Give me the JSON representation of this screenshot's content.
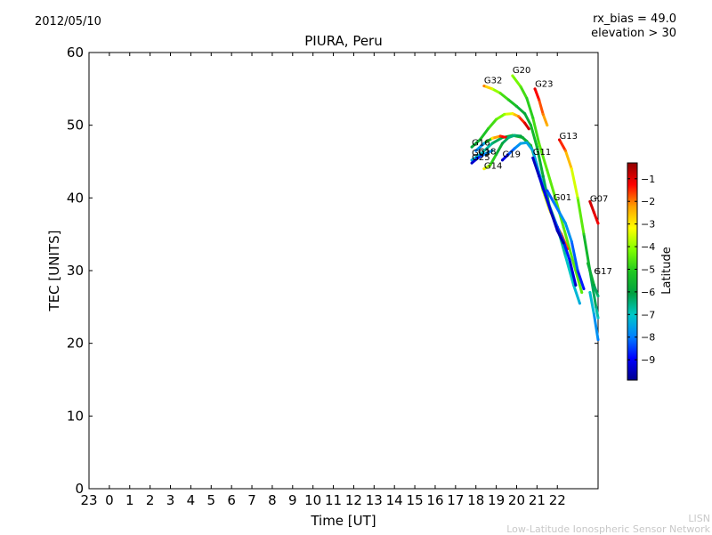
{
  "header": {
    "date": "2012/05/10",
    "bias_line": "rx_bias = 49.0",
    "elevation_line": "elevation > 30"
  },
  "watermark": {
    "line1": "LISN",
    "line2": "Low-Latitude Ionospheric Sensor Network"
  },
  "chart_data": {
    "type": "line",
    "title": "PIURA, Peru",
    "xlabel": "Time [UT]",
    "ylabel": "TEC [UNITS]",
    "xlim": [
      -1,
      24
    ],
    "ylim": [
      0,
      60
    ],
    "x_ticks": [
      -1,
      0,
      1,
      2,
      3,
      4,
      5,
      6,
      7,
      8,
      9,
      10,
      11,
      12,
      13,
      14,
      15,
      16,
      17,
      18,
      19,
      20,
      21,
      22
    ],
    "x_tick_labels": [
      "23",
      "0",
      "1",
      "2",
      "3",
      "4",
      "5",
      "6",
      "7",
      "8",
      "9",
      "10",
      "11",
      "12",
      "13",
      "14",
      "15",
      "16",
      "17",
      "18",
      "19",
      "20",
      "21",
      "22"
    ],
    "y_ticks": [
      0,
      10,
      20,
      30,
      40,
      50,
      60
    ],
    "colorbar": {
      "label": "Latitude",
      "range": [
        -9.9,
        -0.3
      ],
      "ticks": [
        -1,
        -2,
        -3,
        -4,
        -5,
        -6,
        -7,
        -8,
        -9
      ],
      "tick_labels": [
        "−1",
        "−2",
        "−3",
        "−4",
        "−5",
        "−6",
        "−7",
        "−8",
        "−9"
      ],
      "colormap": [
        "#00008f",
        "#0000ff",
        "#0080ff",
        "#00c8c8",
        "#00a040",
        "#20c820",
        "#80ff00",
        "#ffff00",
        "#ffa000",
        "#ff0000",
        "#8f0000"
      ]
    },
    "series": [
      {
        "name": "G32",
        "label_at": [
          18.4,
          55.8
        ],
        "points": [
          [
            18.4,
            55.4,
            -2.0
          ],
          [
            18.8,
            55.0,
            -3.5
          ],
          [
            19.2,
            54.4,
            -4.5
          ],
          [
            19.6,
            53.5,
            -5.0
          ],
          [
            20.0,
            52.6,
            -5.5
          ],
          [
            20.4,
            51.6,
            -6.0
          ],
          [
            20.7,
            50.0,
            -5.5
          ],
          [
            21.0,
            47.0,
            -5.5
          ],
          [
            21.3,
            43.0,
            -6.0
          ],
          [
            21.6,
            39.0,
            -6.5
          ],
          [
            22.0,
            36.0,
            -6.5
          ],
          [
            22.4,
            32.0,
            -7.0
          ],
          [
            22.8,
            28.0,
            -7.0
          ],
          [
            23.1,
            25.5,
            -7.5
          ]
        ]
      },
      {
        "name": "G20",
        "label_at": [
          19.8,
          57.2
        ],
        "points": [
          [
            19.8,
            56.8,
            -4.0
          ],
          [
            20.2,
            55.3,
            -4.5
          ],
          [
            20.5,
            53.7,
            -5.0
          ],
          [
            20.8,
            51.0,
            -5.0
          ],
          [
            21.1,
            47.5,
            -4.5
          ],
          [
            21.5,
            43.8,
            -4.5
          ],
          [
            21.9,
            40.0,
            -4.5
          ],
          [
            22.3,
            36.0,
            -4.5
          ],
          [
            22.6,
            33.0,
            -4.5
          ],
          [
            22.9,
            30.0,
            -4.5
          ],
          [
            23.2,
            27.0,
            -4.5
          ]
        ]
      },
      {
        "name": "G23",
        "label_at": [
          20.9,
          55.3
        ],
        "points": [
          [
            20.9,
            55.0,
            -1.0
          ],
          [
            21.1,
            53.5,
            -1.5
          ],
          [
            21.3,
            51.5,
            -2.0
          ],
          [
            21.5,
            50.0,
            -2.5
          ]
        ]
      },
      {
        "name": "G13",
        "label_at": [
          22.1,
          48.1
        ],
        "points": [
          [
            22.1,
            48.0,
            -1.0
          ],
          [
            22.4,
            46.5,
            -2.0
          ],
          [
            22.7,
            44.0,
            -3.0
          ],
          [
            23.0,
            40.0,
            -4.0
          ],
          [
            23.3,
            35.0,
            -5.0
          ],
          [
            23.6,
            30.0,
            -6.0
          ],
          [
            23.9,
            25.0,
            -6.5
          ],
          [
            24.0,
            23.5,
            -7.0
          ]
        ]
      },
      {
        "name": "G07",
        "label_at": [
          23.6,
          39.5
        ],
        "points": [
          [
            23.6,
            39.5,
            -0.8
          ],
          [
            23.8,
            38.0,
            -1.0
          ],
          [
            24.0,
            36.5,
            -1.2
          ]
        ]
      },
      {
        "name": "G17",
        "label_at": [
          23.8,
          29.5
        ],
        "points": [
          [
            23.5,
            31.0,
            -5.5
          ],
          [
            23.8,
            28.0,
            -6.0
          ],
          [
            24.0,
            26.5,
            -6.5
          ]
        ]
      },
      {
        "name": "G16",
        "label_at": [
          17.8,
          47.2
        ],
        "points": [
          [
            17.8,
            47.0,
            -6.0
          ],
          [
            18.2,
            48.0,
            -5.5
          ],
          [
            18.6,
            49.5,
            -5.0
          ],
          [
            19.0,
            50.8,
            -4.5
          ],
          [
            19.4,
            51.5,
            -4.0
          ],
          [
            19.8,
            51.6,
            -3.0
          ],
          [
            20.1,
            51.2,
            -2.0
          ],
          [
            20.4,
            50.3,
            -1.0
          ],
          [
            20.6,
            49.5,
            -0.8
          ]
        ]
      },
      {
        "name": "G03",
        "label_at": [
          17.8,
          45.8
        ],
        "points": [
          [
            17.8,
            45.2,
            -7.5
          ],
          [
            18.3,
            46.2,
            -7.0
          ],
          [
            18.8,
            47.5,
            -6.5
          ],
          [
            19.3,
            48.3,
            -6.0
          ],
          [
            19.8,
            48.6,
            -5.5
          ],
          [
            20.3,
            48.3,
            -5.5
          ],
          [
            20.7,
            47.2,
            -5.5
          ],
          [
            21.0,
            44.5,
            -5.0
          ],
          [
            21.3,
            41.0,
            -4.0
          ],
          [
            21.6,
            38.5,
            -3.0
          ],
          [
            21.9,
            36.5,
            -2.5
          ],
          [
            22.2,
            35.0,
            -2.0
          ],
          [
            22.5,
            33.0,
            -1.5
          ]
        ]
      },
      {
        "name": "G18",
        "label_at": [
          18.1,
          46.0
        ],
        "points": [
          [
            18.0,
            46.5,
            -8.0
          ],
          [
            18.4,
            47.5,
            -7.5
          ],
          [
            18.8,
            48.2,
            -3.0
          ],
          [
            19.2,
            48.5,
            -1.5
          ],
          [
            19.5,
            48.3,
            -1.0
          ]
        ]
      },
      {
        "name": "G25",
        "label_at": [
          17.8,
          45.2
        ],
        "points": [
          [
            17.8,
            44.8,
            -9.5
          ],
          [
            18.1,
            45.5,
            -9.0
          ],
          [
            18.4,
            46.0,
            -8.0
          ],
          [
            18.8,
            46.5,
            -7.5
          ]
        ]
      },
      {
        "name": "G14",
        "label_at": [
          18.4,
          44.0
        ],
        "points": [
          [
            18.4,
            44.0,
            -3.0
          ],
          [
            18.7,
            44.5,
            -4.5
          ],
          [
            19.0,
            46.0,
            -5.5
          ],
          [
            19.3,
            47.5,
            -6.0
          ],
          [
            19.6,
            48.3,
            -6.5
          ],
          [
            19.9,
            48.6,
            -6.5
          ],
          [
            20.2,
            48.5,
            -6.0
          ],
          [
            20.5,
            47.8,
            -5.5
          ],
          [
            20.8,
            46.5,
            -5.5
          ]
        ]
      },
      {
        "name": "G19",
        "label_at": [
          19.3,
          45.6
        ],
        "points": [
          [
            19.3,
            45.2,
            -9.5
          ],
          [
            19.6,
            46.0,
            -8.5
          ],
          [
            19.9,
            46.8,
            -8.0
          ],
          [
            20.2,
            47.5,
            -7.5
          ],
          [
            20.5,
            47.6,
            -7.5
          ],
          [
            20.8,
            46.5,
            -7.5
          ],
          [
            21.1,
            43.5,
            -7.5
          ],
          [
            21.4,
            40.5,
            -8.0
          ],
          [
            21.7,
            38.0,
            -8.0
          ],
          [
            22.0,
            36.0,
            -8.5
          ],
          [
            22.3,
            34.0,
            -8.5
          ],
          [
            22.6,
            31.5,
            -9.0
          ],
          [
            22.9,
            28.0,
            -9.5
          ]
        ]
      },
      {
        "name": "G11",
        "label_at": [
          20.8,
          45.9
        ],
        "points": [
          [
            20.8,
            45.5,
            -9.5
          ],
          [
            21.1,
            43.0,
            -9.5
          ],
          [
            21.4,
            40.5,
            -9.0
          ],
          [
            21.7,
            38.0,
            -9.5
          ],
          [
            22.0,
            35.5,
            -9.5
          ],
          [
            22.3,
            33.8,
            -9.8
          ]
        ]
      },
      {
        "name": "G01",
        "label_at": [
          21.8,
          39.7
        ],
        "points": [
          [
            21.5,
            41.0,
            -8.5
          ],
          [
            21.8,
            39.5,
            -8.0
          ],
          [
            22.1,
            38.0,
            -8.0
          ],
          [
            22.4,
            36.5,
            -7.5
          ],
          [
            22.7,
            34.0,
            -8.0
          ],
          [
            23.0,
            30.0,
            -8.5
          ],
          [
            23.3,
            27.5,
            -9.0
          ]
        ]
      },
      {
        "name": "",
        "label_at": null,
        "points": [
          [
            23.6,
            27.0,
            -7.0
          ],
          [
            23.8,
            24.0,
            -7.5
          ],
          [
            24.0,
            20.5,
            -8.0
          ]
        ]
      }
    ]
  }
}
